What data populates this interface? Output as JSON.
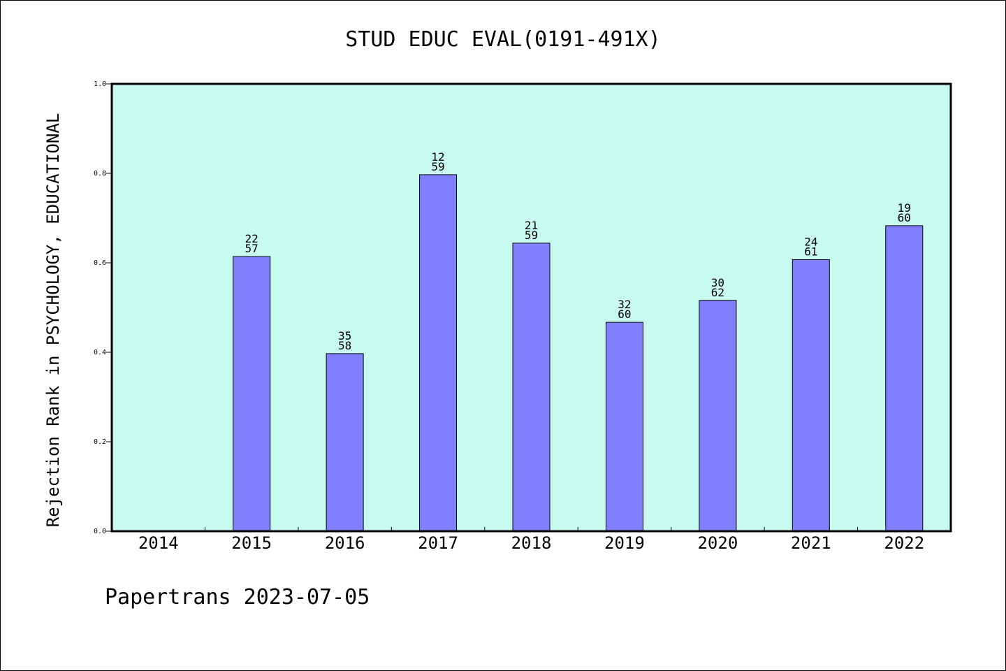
{
  "chart_data": {
    "type": "bar",
    "title": "STUD EDUC EVAL(0191-491X)",
    "ylabel": "Rejection Rank in PSYCHOLOGY, EDUCATIONAL",
    "xlabel": "",
    "ylim": [
      0,
      1.0
    ],
    "yticks": [
      "0.0",
      "0.2",
      "0.4",
      "0.6",
      "0.8",
      "1.0"
    ],
    "categories": [
      "2014",
      "2015",
      "2016",
      "2017",
      "2018",
      "2019",
      "2020",
      "2021",
      "2022"
    ],
    "values": [
      null,
      0.614,
      0.397,
      0.797,
      0.644,
      0.467,
      0.516,
      0.607,
      0.683
    ],
    "label_top": [
      "",
      "22",
      "35",
      "12",
      "21",
      "32",
      "30",
      "24",
      "19"
    ],
    "label_bottom": [
      "",
      "57",
      "58",
      "59",
      "59",
      "60",
      "62",
      "61",
      "60"
    ],
    "grid": false,
    "colors": {
      "plot_background": "#c8fbef",
      "bar_fill": "#8080ff",
      "bar_stroke": "#000000"
    }
  },
  "footer": "Papertrans 2023-07-05"
}
